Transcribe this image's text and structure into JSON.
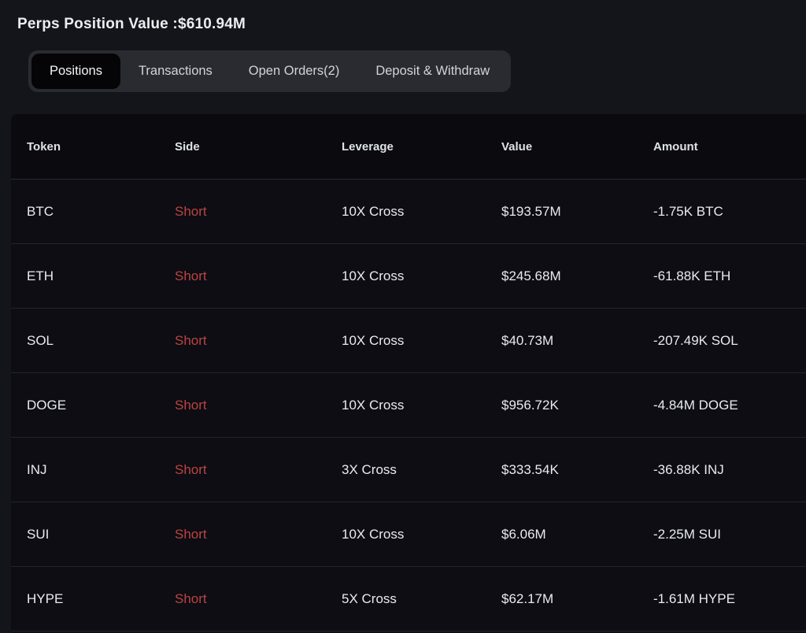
{
  "page": {
    "title": "Perps Position Value :$610.94M"
  },
  "tabs": {
    "items": [
      {
        "label": "Positions",
        "active": true
      },
      {
        "label": "Transactions",
        "active": false
      },
      {
        "label": "Open Orders(2)",
        "active": false
      },
      {
        "label": "Deposit & Withdraw",
        "active": false
      }
    ]
  },
  "table": {
    "columns": [
      "Token",
      "Side",
      "Leverage",
      "Value",
      "Amount"
    ],
    "rows": [
      {
        "token": "BTC",
        "side": "Short",
        "leverage": "10X Cross",
        "value": "$193.57M",
        "amount": "-1.75K BTC"
      },
      {
        "token": "ETH",
        "side": "Short",
        "leverage": "10X Cross",
        "value": "$245.68M",
        "amount": "-61.88K ETH"
      },
      {
        "token": "SOL",
        "side": "Short",
        "leverage": "10X Cross",
        "value": "$40.73M",
        "amount": "-207.49K SOL"
      },
      {
        "token": "DOGE",
        "side": "Short",
        "leverage": "10X Cross",
        "value": "$956.72K",
        "amount": "-4.84M DOGE"
      },
      {
        "token": "INJ",
        "side": "Short",
        "leverage": "3X Cross",
        "value": "$333.54K",
        "amount": "-36.88K INJ"
      },
      {
        "token": "SUI",
        "side": "Short",
        "leverage": "10X Cross",
        "value": "$6.06M",
        "amount": "-2.25M SUI"
      },
      {
        "token": "HYPE",
        "side": "Short",
        "leverage": "5X Cross",
        "value": "$62.17M",
        "amount": "-1.61M HYPE"
      }
    ]
  },
  "colors": {
    "short_red": "#bc4343",
    "active_tab_bg": "#050507",
    "tabbar_bg": "#2a2a31",
    "page_bg": "#14141b",
    "table_bg": "#0d0d13"
  }
}
